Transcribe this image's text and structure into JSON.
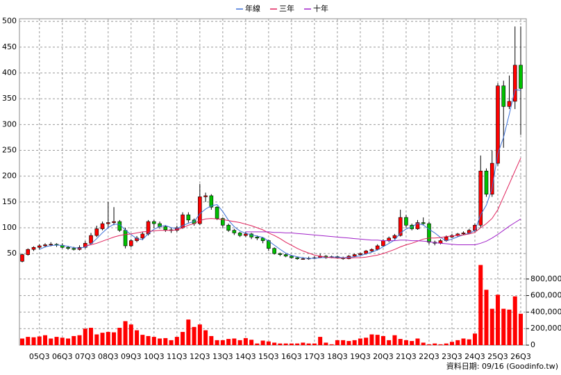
{
  "chart_data": {
    "type": "candlestick",
    "legend": "top",
    "up_color": "#ff0000",
    "down_color": "#00c000",
    "categories": [
      null,
      null,
      null,
      "05Q3",
      null,
      null,
      null,
      "06Q3",
      null,
      null,
      null,
      "07Q3",
      null,
      null,
      null,
      "08Q3",
      null,
      null,
      null,
      "09Q3",
      null,
      null,
      null,
      "10Q3",
      null,
      null,
      null,
      "11Q3",
      null,
      null,
      null,
      "12Q3",
      null,
      null,
      null,
      "13Q3",
      null,
      null,
      null,
      "14Q3",
      null,
      null,
      null,
      "15Q3",
      null,
      null,
      null,
      "16Q3",
      null,
      null,
      null,
      "17Q3",
      null,
      null,
      null,
      "18Q3",
      null,
      null,
      null,
      "19Q3",
      null,
      null,
      null,
      "20Q3",
      null,
      null,
      null,
      "21Q3",
      null,
      null,
      null,
      "22Q3",
      null,
      null,
      null,
      "23Q3",
      null,
      null,
      null,
      "24Q3",
      null,
      null,
      null,
      "25Q3",
      null,
      null,
      null,
      "26Q3"
    ],
    "candles": [
      [
        35,
        50,
        33,
        48
      ],
      [
        48,
        60,
        46,
        58
      ],
      [
        58,
        64,
        55,
        62
      ],
      [
        62,
        68,
        58,
        65
      ],
      [
        65,
        70,
        62,
        67
      ],
      [
        67,
        72,
        64,
        68
      ],
      [
        68,
        70,
        63,
        66
      ],
      [
        66,
        70,
        60,
        62
      ],
      [
        62,
        65,
        57,
        60
      ],
      [
        60,
        63,
        56,
        58
      ],
      [
        58,
        66,
        56,
        62
      ],
      [
        62,
        74,
        60,
        70
      ],
      [
        70,
        90,
        68,
        85
      ],
      [
        85,
        104,
        82,
        98
      ],
      [
        98,
        112,
        95,
        108
      ],
      [
        108,
        150,
        100,
        110
      ],
      [
        110,
        140,
        105,
        112
      ],
      [
        112,
        115,
        92,
        95
      ],
      [
        95,
        100,
        60,
        65
      ],
      [
        65,
        78,
        62,
        75
      ],
      [
        75,
        84,
        72,
        80
      ],
      [
        80,
        92,
        76,
        88
      ],
      [
        88,
        115,
        85,
        112
      ],
      [
        112,
        115,
        100,
        108
      ],
      [
        108,
        112,
        98,
        102
      ],
      [
        102,
        105,
        92,
        96
      ],
      [
        96,
        100,
        90,
        95
      ],
      [
        95,
        104,
        92,
        100
      ],
      [
        100,
        130,
        98,
        125
      ],
      [
        125,
        130,
        110,
        115
      ],
      [
        115,
        118,
        104,
        108
      ],
      [
        108,
        185,
        105,
        160
      ],
      [
        160,
        168,
        150,
        162
      ],
      [
        162,
        165,
        135,
        140
      ],
      [
        140,
        142,
        115,
        118
      ],
      [
        118,
        120,
        100,
        105
      ],
      [
        105,
        108,
        92,
        95
      ],
      [
        95,
        98,
        86,
        90
      ],
      [
        90,
        92,
        82,
        85
      ],
      [
        85,
        92,
        82,
        88
      ],
      [
        88,
        90,
        78,
        82
      ],
      [
        82,
        85,
        76,
        80
      ],
      [
        80,
        82,
        70,
        75
      ],
      [
        75,
        77,
        55,
        60
      ],
      [
        60,
        62,
        48,
        50
      ],
      [
        50,
        52,
        45,
        48
      ],
      [
        48,
        50,
        43,
        45
      ],
      [
        45,
        47,
        40,
        42
      ],
      [
        42,
        44,
        38,
        40
      ],
      [
        40,
        43,
        38,
        40
      ],
      [
        40,
        44,
        38,
        41
      ],
      [
        41,
        45,
        39,
        42
      ],
      [
        42,
        50,
        41,
        45
      ],
      [
        45,
        47,
        40,
        42
      ],
      [
        42,
        46,
        41,
        44
      ],
      [
        44,
        46,
        40,
        42
      ],
      [
        42,
        44,
        38,
        40
      ],
      [
        40,
        47,
        39,
        45
      ],
      [
        45,
        50,
        44,
        48
      ],
      [
        48,
        52,
        46,
        50
      ],
      [
        50,
        57,
        48,
        55
      ],
      [
        55,
        60,
        53,
        58
      ],
      [
        58,
        68,
        56,
        65
      ],
      [
        65,
        78,
        63,
        75
      ],
      [
        75,
        83,
        72,
        80
      ],
      [
        80,
        88,
        78,
        85
      ],
      [
        85,
        135,
        83,
        120
      ],
      [
        120,
        125,
        100,
        105
      ],
      [
        105,
        108,
        95,
        98
      ],
      [
        98,
        115,
        96,
        110
      ],
      [
        110,
        120,
        105,
        108
      ],
      [
        108,
        112,
        68,
        72
      ],
      [
        72,
        75,
        66,
        70
      ],
      [
        70,
        78,
        68,
        75
      ],
      [
        75,
        85,
        73,
        82
      ],
      [
        82,
        88,
        80,
        85
      ],
      [
        85,
        90,
        83,
        88
      ],
      [
        88,
        93,
        86,
        90
      ],
      [
        90,
        98,
        88,
        95
      ],
      [
        95,
        108,
        92,
        105
      ],
      [
        105,
        240,
        100,
        210
      ],
      [
        210,
        215,
        160,
        165
      ],
      [
        165,
        250,
        160,
        225
      ],
      [
        225,
        380,
        220,
        375
      ],
      [
        375,
        385,
        255,
        335
      ],
      [
        335,
        395,
        330,
        345
      ],
      [
        345,
        490,
        330,
        415
      ],
      [
        415,
        490,
        280,
        370
      ]
    ],
    "series": [
      {
        "name": "年線",
        "color": "#3a6fd8",
        "values": [
          null,
          null,
          null,
          58,
          63,
          65.5,
          66.5,
          65.8,
          64,
          61.5,
          60.5,
          62.5,
          68.8,
          78.8,
          90.3,
          100.3,
          107,
          106.3,
          95.5,
          86.8,
          78.8,
          77,
          88.8,
          97,
          102.5,
          104.5,
          100.3,
          98.3,
          104,
          108.8,
          112,
          127,
          136.3,
          142.5,
          145,
          131.3,
          114.5,
          102,
          93.8,
          89.5,
          86.3,
          83.8,
          81.3,
          74.3,
          66.3,
          58.3,
          50.8,
          46.3,
          43.8,
          41.8,
          40.8,
          40.8,
          42,
          42.5,
          43.3,
          43.3,
          42,
          42.8,
          43.8,
          45.8,
          49.5,
          52.8,
          57,
          63.3,
          69.5,
          76.3,
          90,
          97.5,
          102,
          108.3,
          105.3,
          97,
          90,
          81.3,
          74.8,
          78,
          82.5,
          86.3,
          89.5,
          94.5,
          125,
          143.8,
          176.3,
          243.8,
          275,
          320,
          367.5,
          366.3
        ]
      },
      {
        "name": "三年",
        "color": "#e0205a",
        "values": [
          null,
          null,
          null,
          null,
          null,
          null,
          null,
          null,
          null,
          null,
          null,
          65,
          67,
          70,
          74,
          78,
          82,
          85,
          87,
          88,
          90,
          92,
          93,
          94,
          95,
          95,
          95,
          96,
          100,
          105,
          108,
          114,
          117,
          118,
          117,
          116,
          114,
          112,
          110,
          107,
          104,
          100,
          96,
          90,
          85,
          79,
          72,
          66,
          60,
          55,
          51,
          47,
          45,
          43,
          42,
          41,
          41,
          41,
          42,
          42,
          43,
          45,
          47,
          50,
          54,
          58,
          63,
          67,
          70,
          74,
          78,
          80,
          80,
          81,
          83,
          84,
          85,
          86,
          88,
          91,
          100,
          108,
          118,
          135,
          160,
          185,
          210,
          235
        ]
      },
      {
        "name": "十年",
        "color": "#a020c8",
        "values": [
          null,
          null,
          null,
          null,
          null,
          null,
          null,
          null,
          null,
          null,
          null,
          null,
          null,
          null,
          null,
          null,
          null,
          null,
          null,
          null,
          null,
          null,
          null,
          null,
          null,
          null,
          null,
          null,
          null,
          null,
          null,
          null,
          null,
          null,
          null,
          null,
          null,
          null,
          null,
          92,
          92,
          92,
          92,
          92,
          91,
          91,
          90,
          90,
          89,
          88,
          87,
          86,
          85,
          84,
          83,
          82,
          81,
          80,
          79,
          78,
          77,
          76,
          76,
          75,
          75,
          75,
          76,
          76,
          75,
          75,
          74,
          73,
          71,
          70,
          69,
          68,
          67,
          67,
          67,
          67,
          70,
          74,
          80,
          87,
          95,
          103,
          110,
          117
        ]
      }
    ],
    "ylim": [
      30,
      505
    ],
    "yticks": [
      50,
      100,
      150,
      200,
      250,
      300,
      350,
      400,
      450,
      500
    ],
    "volume": {
      "color": "#ff0000",
      "values": [
        80000,
        100000,
        95000,
        105000,
        120000,
        80000,
        100000,
        90000,
        80000,
        110000,
        120000,
        200000,
        210000,
        130000,
        150000,
        160000,
        155000,
        210000,
        290000,
        250000,
        180000,
        125000,
        110000,
        100000,
        80000,
        85000,
        60000,
        100000,
        160000,
        310000,
        220000,
        250000,
        180000,
        110000,
        60000,
        60000,
        75000,
        80000,
        60000,
        85000,
        65000,
        20000,
        55000,
        45000,
        30000,
        20000,
        20000,
        20000,
        20000,
        30000,
        20000,
        20000,
        100000,
        30000,
        10000,
        60000,
        60000,
        50000,
        60000,
        80000,
        90000,
        130000,
        125000,
        110000,
        60000,
        120000,
        75000,
        60000,
        50000,
        80000,
        30000,
        10000,
        20000,
        10000,
        20000,
        40000,
        60000,
        80000,
        70000,
        140000,
        970000,
        670000,
        440000,
        610000,
        440000,
        430000,
        590000,
        380000
      ],
      "ylim": [
        0,
        1000000
      ],
      "yticks": [
        0,
        {
          "value": 200000,
          "label": "200,000"
        },
        {
          "value": 400000,
          "label": "400,000"
        },
        {
          "value": 600000,
          "label": "600,000"
        },
        {
          "value": 800000,
          "label": "800,000"
        }
      ]
    },
    "footer": "資料日期: 09/16 (Goodinfo.tw)"
  }
}
